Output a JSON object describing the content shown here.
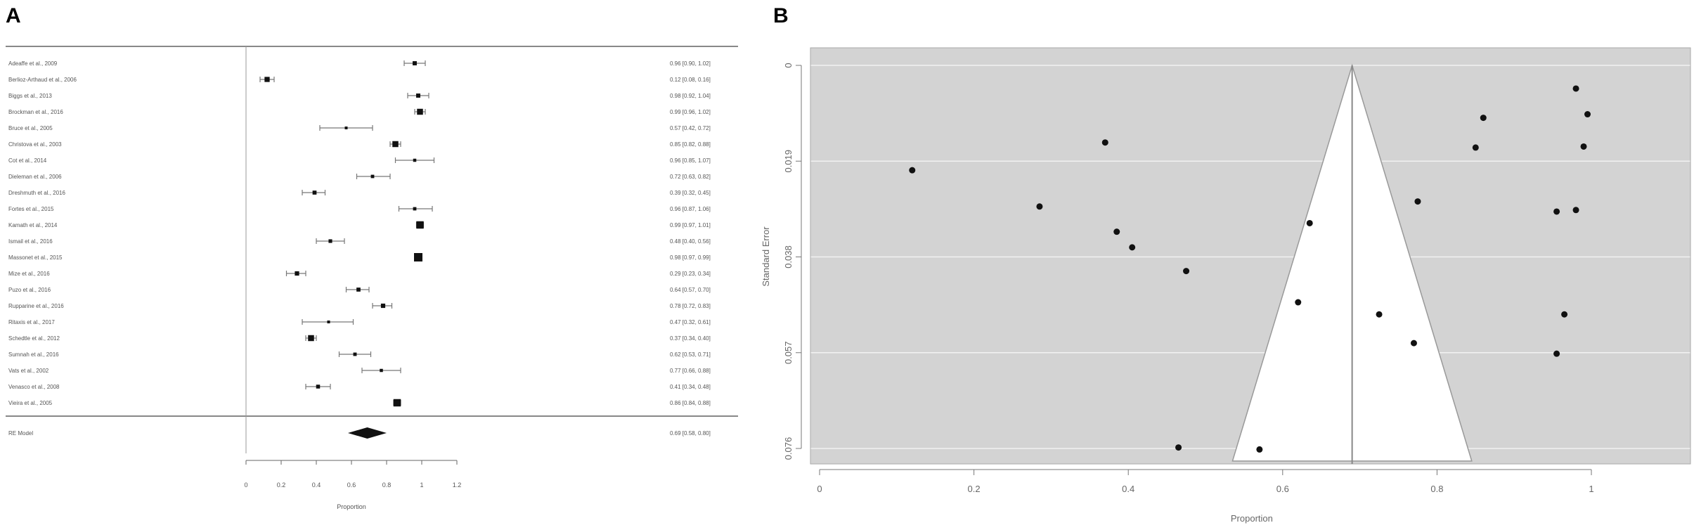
{
  "panels": {
    "a_letter": "A",
    "b_letter": "B"
  },
  "chart_data": [
    {
      "type": "forest",
      "panel": "A",
      "xlabel": "Proportion",
      "xlim": [
        0,
        1.2
      ],
      "xticks": [
        "0",
        "0.2",
        "0.4",
        "0.6",
        "0.8",
        "1",
        "1.2"
      ],
      "xtick_values": [
        0,
        0.2,
        0.4,
        0.6,
        0.8,
        1,
        1.2
      ],
      "studies": [
        {
          "label": "Adeaffe et al., 2009",
          "est": 0.96,
          "lo": 0.9,
          "hi": 1.02,
          "text": "0.96 [0.90, 1.02]"
        },
        {
          "label": "Berlioz-Arthaud et al., 2006",
          "est": 0.12,
          "lo": 0.08,
          "hi": 0.16,
          "text": "0.12 [0.08, 0.16]"
        },
        {
          "label": "Biggs et al., 2013",
          "est": 0.98,
          "lo": 0.92,
          "hi": 1.04,
          "text": "0.98 [0.92, 1.04]"
        },
        {
          "label": "Brockman et al., 2016",
          "est": 0.99,
          "lo": 0.96,
          "hi": 1.02,
          "text": "0.99 [0.96, 1.02]"
        },
        {
          "label": "Bruce et al., 2005",
          "est": 0.57,
          "lo": 0.42,
          "hi": 0.72,
          "text": "0.57 [0.42, 0.72]"
        },
        {
          "label": "Christova et al., 2003",
          "est": 0.85,
          "lo": 0.82,
          "hi": 0.88,
          "text": "0.85 [0.82, 0.88]"
        },
        {
          "label": "Cot et al., 2014",
          "est": 0.96,
          "lo": 0.85,
          "hi": 1.07,
          "text": "0.96 [0.85, 1.07]"
        },
        {
          "label": "Dieleman et al., 2006",
          "est": 0.72,
          "lo": 0.63,
          "hi": 0.82,
          "text": "0.72 [0.63, 0.82]"
        },
        {
          "label": "Dreshmuth et al., 2016",
          "est": 0.39,
          "lo": 0.32,
          "hi": 0.45,
          "text": "0.39 [0.32, 0.45]"
        },
        {
          "label": "Fortes et al., 2015",
          "est": 0.96,
          "lo": 0.87,
          "hi": 1.06,
          "text": "0.96 [0.87, 1.06]"
        },
        {
          "label": "Kamath et al., 2014",
          "est": 0.99,
          "lo": 0.97,
          "hi": 1.01,
          "text": "0.99 [0.97, 1.01]"
        },
        {
          "label": "Ismail et al., 2016",
          "est": 0.48,
          "lo": 0.4,
          "hi": 0.56,
          "text": "0.48 [0.40, 0.56]"
        },
        {
          "label": "Massonet et al., 2015",
          "est": 0.98,
          "lo": 0.97,
          "hi": 0.99,
          "text": "0.98 [0.97, 0.99]"
        },
        {
          "label": "Mize et al., 2016",
          "est": 0.29,
          "lo": 0.23,
          "hi": 0.34,
          "text": "0.29 [0.23, 0.34]"
        },
        {
          "label": "Puzo et al., 2016",
          "est": 0.64,
          "lo": 0.57,
          "hi": 0.7,
          "text": "0.64 [0.57, 0.70]"
        },
        {
          "label": "Rupparine et al., 2016",
          "est": 0.78,
          "lo": 0.72,
          "hi": 0.83,
          "text": "0.78 [0.72, 0.83]"
        },
        {
          "label": "Ritaxis et al., 2017",
          "est": 0.47,
          "lo": 0.32,
          "hi": 0.61,
          "text": "0.47 [0.32, 0.61]"
        },
        {
          "label": "Schedtle et al., 2012",
          "est": 0.37,
          "lo": 0.34,
          "hi": 0.4,
          "text": "0.37 [0.34, 0.40]"
        },
        {
          "label": "Sumnah et al., 2016",
          "est": 0.62,
          "lo": 0.53,
          "hi": 0.71,
          "text": "0.62 [0.53, 0.71]"
        },
        {
          "label": "Vats et al., 2002",
          "est": 0.77,
          "lo": 0.66,
          "hi": 0.88,
          "text": "0.77 [0.66, 0.88]"
        },
        {
          "label": "Venasco et al., 2008",
          "est": 0.41,
          "lo": 0.34,
          "hi": 0.48,
          "text": "0.41 [0.34, 0.48]"
        },
        {
          "label": "Vieira et al., 2005",
          "est": 0.86,
          "lo": 0.84,
          "hi": 0.88,
          "text": "0.86 [0.84, 0.88]"
        }
      ],
      "summary": {
        "label": "RE Model",
        "est": 0.69,
        "lo": 0.58,
        "hi": 0.8,
        "text": "0.69 [0.58, 0.80]"
      }
    },
    {
      "type": "scatter",
      "panel": "B",
      "xlabel": "Proportion",
      "ylabel": "Standard Error",
      "xlim": [
        0,
        1.12
      ],
      "ylim": [
        0,
        0.078
      ],
      "y_reversed": true,
      "xticks": [
        "0",
        "0.2",
        "0.4",
        "0.6",
        "0.8",
        "1"
      ],
      "xtick_values": [
        0,
        0.2,
        0.4,
        0.6,
        0.8,
        1
      ],
      "yticks": [
        "0",
        "0.019",
        "0.038",
        "0.057",
        "0.076"
      ],
      "ytick_values": [
        0,
        0.019,
        0.038,
        0.057,
        0.076
      ],
      "funnel_center": 0.69,
      "funnel_base": [
        0.535,
        0.845
      ],
      "points": [
        {
          "x": 0.12,
          "y": 0.0208
        },
        {
          "x": 0.37,
          "y": 0.0153
        },
        {
          "x": 0.285,
          "y": 0.028
        },
        {
          "x": 0.385,
          "y": 0.033
        },
        {
          "x": 0.405,
          "y": 0.0361
        },
        {
          "x": 0.475,
          "y": 0.0408
        },
        {
          "x": 0.465,
          "y": 0.0758
        },
        {
          "x": 0.57,
          "y": 0.0762
        },
        {
          "x": 0.62,
          "y": 0.047
        },
        {
          "x": 0.635,
          "y": 0.0313
        },
        {
          "x": 0.725,
          "y": 0.0494
        },
        {
          "x": 0.77,
          "y": 0.0551
        },
        {
          "x": 0.775,
          "y": 0.027
        },
        {
          "x": 0.85,
          "y": 0.0163
        },
        {
          "x": 0.86,
          "y": 0.0104
        },
        {
          "x": 0.955,
          "y": 0.029
        },
        {
          "x": 0.955,
          "y": 0.0572
        },
        {
          "x": 0.965,
          "y": 0.0494
        },
        {
          "x": 0.98,
          "y": 0.0046
        },
        {
          "x": 0.98,
          "y": 0.0287
        },
        {
          "x": 0.99,
          "y": 0.0161
        },
        {
          "x": 0.995,
          "y": 0.0097
        }
      ]
    }
  ]
}
